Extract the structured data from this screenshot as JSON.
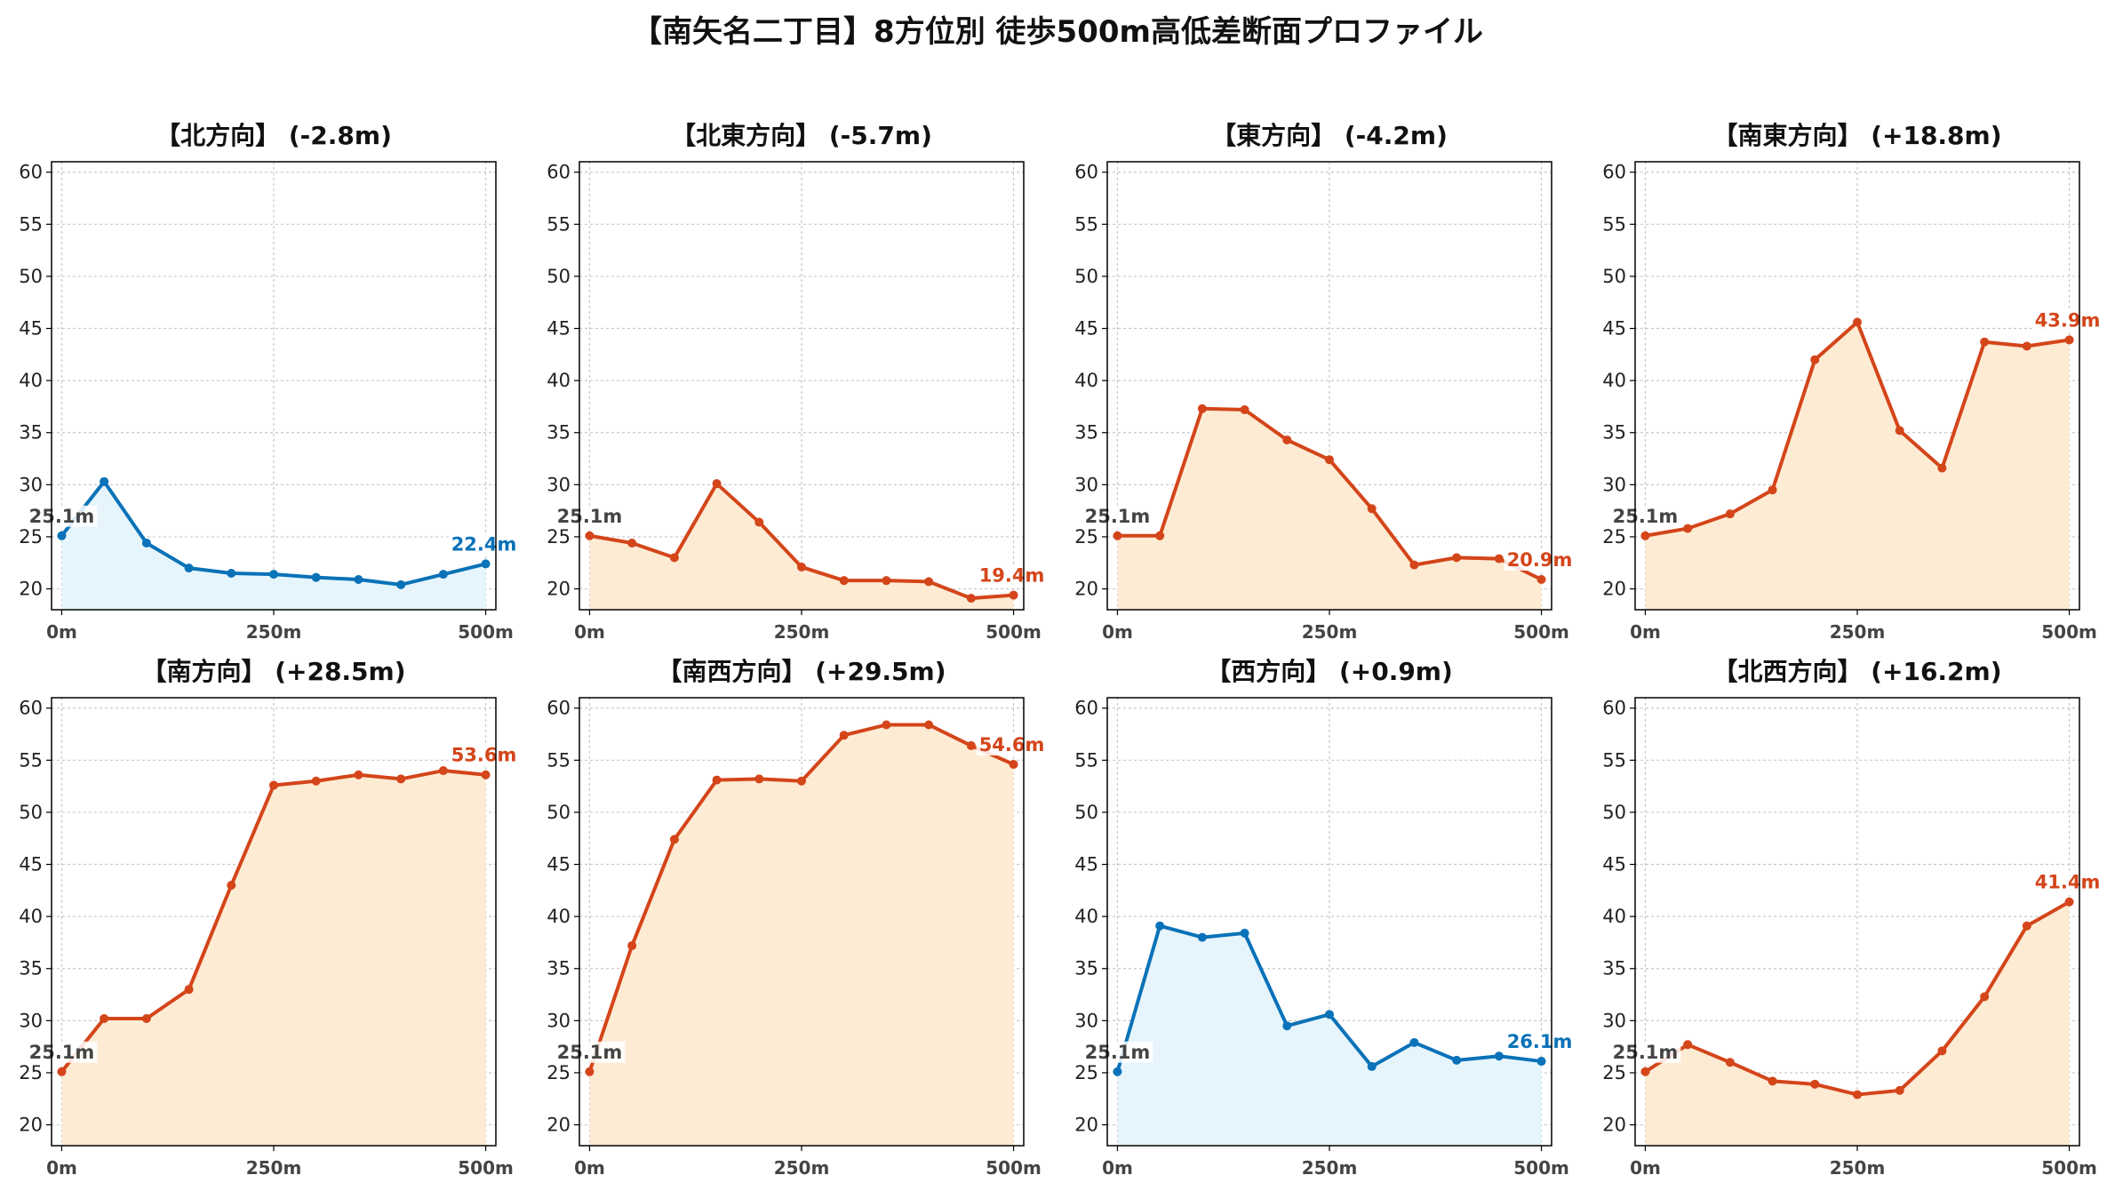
{
  "title": "【南矢名二丁目】8方位別 徒歩500m高低差断面プロファイル",
  "colors": {
    "down": "#0a72b8",
    "up": "#d4451a",
    "down_fill": "#e6f5fc",
    "up_fill": "#fdebd3",
    "start_label": "#444444"
  },
  "chart_data": [
    {
      "type": "line",
      "title": "【北方向】 (-2.8m)",
      "trend": "down",
      "x_ticks": [
        "0m",
        "250m",
        "500m"
      ],
      "ylim": [
        18,
        61
      ],
      "y_ticks": [
        20,
        25,
        30,
        35,
        40,
        45,
        50,
        55,
        60
      ],
      "grid": true,
      "x": [
        0,
        50,
        100,
        150,
        200,
        250,
        300,
        350,
        400,
        450,
        500
      ],
      "y": [
        25.1,
        30.3,
        24.4,
        22.0,
        21.5,
        21.4,
        21.1,
        20.9,
        20.4,
        21.4,
        22.4
      ],
      "start_label": "25.1m",
      "end_label": "22.4m"
    },
    {
      "type": "line",
      "title": "【北東方向】 (-5.7m)",
      "trend": "up",
      "x_ticks": [
        "0m",
        "250m",
        "500m"
      ],
      "ylim": [
        18,
        61
      ],
      "y_ticks": [
        20,
        25,
        30,
        35,
        40,
        45,
        50,
        55,
        60
      ],
      "grid": true,
      "x": [
        0,
        50,
        100,
        150,
        200,
        250,
        300,
        350,
        400,
        450,
        500
      ],
      "y": [
        25.1,
        24.4,
        23.0,
        30.1,
        26.4,
        22.1,
        20.8,
        20.8,
        20.7,
        19.1,
        19.4
      ],
      "start_label": "25.1m",
      "end_label": "19.4m"
    },
    {
      "type": "line",
      "title": "【東方向】 (-4.2m)",
      "trend": "up",
      "x_ticks": [
        "0m",
        "250m",
        "500m"
      ],
      "ylim": [
        18,
        61
      ],
      "y_ticks": [
        20,
        25,
        30,
        35,
        40,
        45,
        50,
        55,
        60
      ],
      "grid": true,
      "x": [
        0,
        50,
        100,
        150,
        200,
        250,
        300,
        350,
        400,
        450,
        500
      ],
      "y": [
        25.1,
        25.1,
        37.3,
        37.2,
        34.3,
        32.4,
        27.7,
        22.3,
        23.0,
        22.9,
        20.9
      ],
      "start_label": "25.1m",
      "end_label": "20.9m"
    },
    {
      "type": "line",
      "title": "【南東方向】 (+18.8m)",
      "trend": "up",
      "x_ticks": [
        "0m",
        "250m",
        "500m"
      ],
      "ylim": [
        18,
        61
      ],
      "y_ticks": [
        20,
        25,
        30,
        35,
        40,
        45,
        50,
        55,
        60
      ],
      "grid": true,
      "x": [
        0,
        50,
        100,
        150,
        200,
        250,
        300,
        350,
        400,
        450,
        500
      ],
      "y": [
        25.1,
        25.8,
        27.2,
        29.5,
        42.0,
        45.6,
        35.2,
        31.6,
        43.7,
        43.3,
        43.9
      ],
      "start_label": "25.1m",
      "end_label": "43.9m"
    },
    {
      "type": "line",
      "title": "【南方向】 (+28.5m)",
      "trend": "up",
      "x_ticks": [
        "0m",
        "250m",
        "500m"
      ],
      "ylim": [
        18,
        61
      ],
      "y_ticks": [
        20,
        25,
        30,
        35,
        40,
        45,
        50,
        55,
        60
      ],
      "grid": true,
      "x": [
        0,
        50,
        100,
        150,
        200,
        250,
        300,
        350,
        400,
        450,
        500
      ],
      "y": [
        25.1,
        30.2,
        30.2,
        33.0,
        43.0,
        52.6,
        53.0,
        53.6,
        53.2,
        54.0,
        53.6
      ],
      "start_label": "25.1m",
      "end_label": "53.6m"
    },
    {
      "type": "line",
      "title": "【南西方向】 (+29.5m)",
      "trend": "up",
      "x_ticks": [
        "0m",
        "250m",
        "500m"
      ],
      "ylim": [
        18,
        61
      ],
      "y_ticks": [
        20,
        25,
        30,
        35,
        40,
        45,
        50,
        55,
        60
      ],
      "grid": true,
      "x": [
        0,
        50,
        100,
        150,
        200,
        250,
        300,
        350,
        400,
        450,
        500
      ],
      "y": [
        25.1,
        37.2,
        47.4,
        53.1,
        53.2,
        53.0,
        57.4,
        58.4,
        58.4,
        56.4,
        54.6
      ],
      "start_label": "25.1m",
      "end_label": "54.6m"
    },
    {
      "type": "line",
      "title": "【西方向】 (+0.9m)",
      "trend": "down",
      "x_ticks": [
        "0m",
        "250m",
        "500m"
      ],
      "ylim": [
        18,
        61
      ],
      "y_ticks": [
        20,
        25,
        30,
        35,
        40,
        45,
        50,
        55,
        60
      ],
      "grid": true,
      "x": [
        0,
        50,
        100,
        150,
        200,
        250,
        300,
        350,
        400,
        450,
        500
      ],
      "y": [
        25.1,
        39.1,
        38.0,
        38.4,
        29.5,
        30.6,
        25.6,
        27.9,
        26.2,
        26.6,
        26.1
      ],
      "start_label": "25.1m",
      "end_label": "26.1m"
    },
    {
      "type": "line",
      "title": "【北西方向】 (+16.2m)",
      "trend": "up",
      "x_ticks": [
        "0m",
        "250m",
        "500m"
      ],
      "ylim": [
        18,
        61
      ],
      "y_ticks": [
        20,
        25,
        30,
        35,
        40,
        45,
        50,
        55,
        60
      ],
      "grid": true,
      "x": [
        0,
        50,
        100,
        150,
        200,
        250,
        300,
        350,
        400,
        450,
        500
      ],
      "y": [
        25.1,
        27.7,
        26.0,
        24.2,
        23.9,
        22.9,
        23.3,
        27.1,
        32.3,
        39.1,
        41.4
      ],
      "start_label": "25.1m",
      "end_label": "41.4m"
    }
  ]
}
